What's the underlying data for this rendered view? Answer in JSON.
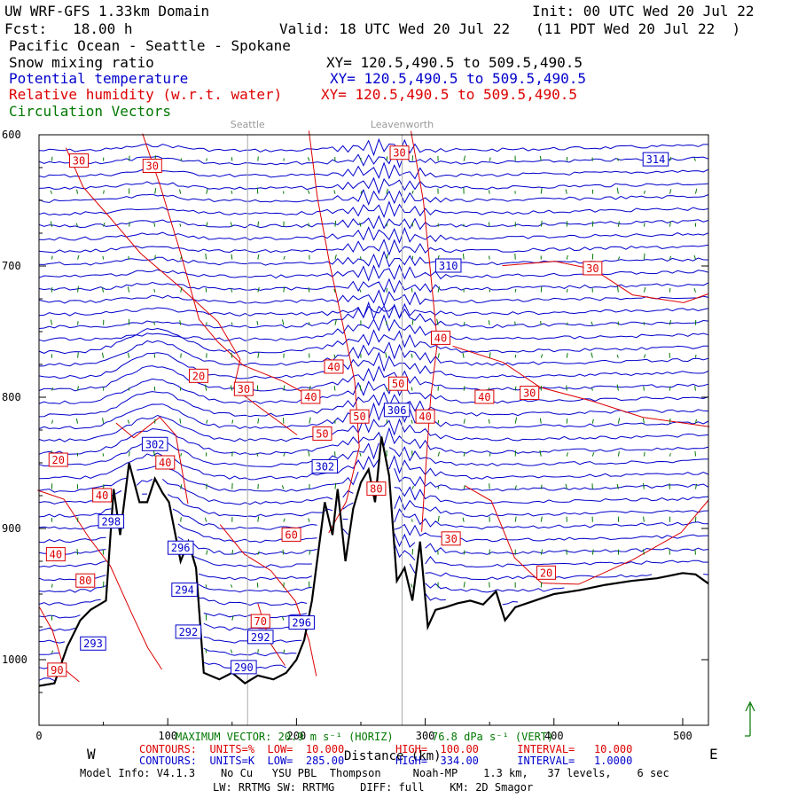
{
  "header": {
    "model_title": "UW WRF-GFS 1.33km Domain",
    "init": "Init: 00 UTC Wed 20 Jul 22",
    "fcst": "Fcst:   18.00 h",
    "valid": "Valid: 18 UTC Wed 20 Jul 22   (11 PDT Wed 20 Jul 22  )",
    "region": "Pacific Ocean - Seattle - Spokane",
    "field_snow": "Snow mixing ratio",
    "xy_snow": "XY= 120.5,490.5 to 509.5,490.5",
    "field_theta": "Potential temperature",
    "xy_theta": "XY= 120.5,490.5 to 509.5,490.5",
    "field_rh": "Relative humidity (w.r.t. water)",
    "xy_rh": "XY= 120.5,490.5 to 509.5,490.5",
    "field_vec": "Circulation Vectors"
  },
  "footer": {
    "west": "W",
    "east": "E",
    "xlabel": "Distance (km)",
    "maxvec": "MAXIMUM VECTOR: 20.9 m s⁻¹ (HORIZ)      76.8 dPa s⁻¹ (VERT)",
    "rh_contours": "CONTOURS:  UNITS=%  LOW=  10.000        HIGH=  100.00      INTERVAL=   10.000",
    "th_contours": "CONTOURS:  UNITS=K  LOW=  285.00        HIGH=  334.00      INTERVAL=   1.0000",
    "model_info": "Model Info: V4.1.3    No Cu   YSU PBL  Thompson     Noah-MP    1.3 km,   37 levels,    6 sec",
    "physics": "LW: RRTMG SW: RRTMG    DIFF: full    KM: 2D Smagor"
  },
  "chart_data": {
    "type": "line",
    "xlabel": "Distance (km)",
    "ylabel": "",
    "xlim": [
      0,
      520
    ],
    "ylim": [
      1050,
      600
    ],
    "xticks": [
      0,
      100,
      200,
      300,
      400,
      500
    ],
    "yticks": [
      600,
      700,
      800,
      900,
      1000
    ],
    "ytick_labels": [
      "600",
      "700",
      "800",
      "900",
      "1000"
    ],
    "location_markers": [
      {
        "name": "Seattle",
        "x": 162
      },
      {
        "name": "Leavenworth",
        "x": 282
      }
    ],
    "terrain_pressure": [
      {
        "x": 0,
        "p": 1020
      },
      {
        "x": 12,
        "p": 1018
      },
      {
        "x": 22,
        "p": 990
      },
      {
        "x": 32,
        "p": 970
      },
      {
        "x": 40,
        "p": 962
      },
      {
        "x": 52,
        "p": 955
      },
      {
        "x": 58,
        "p": 870
      },
      {
        "x": 63,
        "p": 905
      },
      {
        "x": 70,
        "p": 850
      },
      {
        "x": 78,
        "p": 880
      },
      {
        "x": 84,
        "p": 880
      },
      {
        "x": 90,
        "p": 862
      },
      {
        "x": 96,
        "p": 873
      },
      {
        "x": 101,
        "p": 880
      },
      {
        "x": 110,
        "p": 925
      },
      {
        "x": 116,
        "p": 910
      },
      {
        "x": 122,
        "p": 930
      },
      {
        "x": 128,
        "p": 1010
      },
      {
        "x": 140,
        "p": 1015
      },
      {
        "x": 150,
        "p": 1010
      },
      {
        "x": 160,
        "p": 1018
      },
      {
        "x": 170,
        "p": 1012
      },
      {
        "x": 182,
        "p": 1015
      },
      {
        "x": 192,
        "p": 1010
      },
      {
        "x": 200,
        "p": 1000
      },
      {
        "x": 206,
        "p": 985
      },
      {
        "x": 212,
        "p": 955
      },
      {
        "x": 218,
        "p": 910
      },
      {
        "x": 222,
        "p": 880
      },
      {
        "x": 228,
        "p": 905
      },
      {
        "x": 232,
        "p": 870
      },
      {
        "x": 238,
        "p": 925
      },
      {
        "x": 244,
        "p": 885
      },
      {
        "x": 250,
        "p": 865
      },
      {
        "x": 256,
        "p": 855
      },
      {
        "x": 261,
        "p": 880
      },
      {
        "x": 266,
        "p": 830
      },
      {
        "x": 272,
        "p": 860
      },
      {
        "x": 278,
        "p": 940
      },
      {
        "x": 284,
        "p": 930
      },
      {
        "x": 290,
        "p": 955
      },
      {
        "x": 296,
        "p": 910
      },
      {
        "x": 302,
        "p": 975
      },
      {
        "x": 308,
        "p": 962
      },
      {
        "x": 316,
        "p": 960
      },
      {
        "x": 325,
        "p": 957
      },
      {
        "x": 335,
        "p": 955
      },
      {
        "x": 345,
        "p": 958
      },
      {
        "x": 355,
        "p": 948
      },
      {
        "x": 362,
        "p": 970
      },
      {
        "x": 370,
        "p": 960
      },
      {
        "x": 385,
        "p": 955
      },
      {
        "x": 400,
        "p": 950
      },
      {
        "x": 420,
        "p": 947
      },
      {
        "x": 440,
        "p": 943
      },
      {
        "x": 460,
        "p": 940
      },
      {
        "x": 480,
        "p": 938
      },
      {
        "x": 500,
        "p": 934
      },
      {
        "x": 510,
        "p": 935
      },
      {
        "x": 520,
        "p": 942
      }
    ],
    "theta_labels": [
      {
        "value": "314",
        "x": 479,
        "p": 619
      },
      {
        "value": "310",
        "x": 318,
        "p": 700
      },
      {
        "value": "306",
        "x": 278,
        "p": 810
      },
      {
        "value": "302",
        "x": 90,
        "p": 836
      },
      {
        "value": "302",
        "x": 222,
        "p": 853
      },
      {
        "value": "298",
        "x": 56,
        "p": 895
      },
      {
        "value": "296",
        "x": 110,
        "p": 915
      },
      {
        "value": "294",
        "x": 113,
        "p": 947
      },
      {
        "value": "292",
        "x": 116,
        "p": 979
      },
      {
        "value": "292",
        "x": 172,
        "p": 983
      },
      {
        "value": "296",
        "x": 204,
        "p": 972
      },
      {
        "value": "293",
        "x": 42,
        "p": 988
      },
      {
        "value": "290",
        "x": 159,
        "p": 1006
      }
    ],
    "rh_labels": [
      {
        "value": "30",
        "x": 31,
        "p": 620
      },
      {
        "value": "30",
        "x": 88,
        "p": 624
      },
      {
        "value": "30",
        "x": 280,
        "p": 614
      },
      {
        "value": "30",
        "x": 430,
        "p": 702
      },
      {
        "value": "40",
        "x": 312,
        "p": 755
      },
      {
        "value": "40",
        "x": 229,
        "p": 777
      },
      {
        "value": "20",
        "x": 124,
        "p": 784
      },
      {
        "value": "30",
        "x": 159,
        "p": 794
      },
      {
        "value": "40",
        "x": 211,
        "p": 800
      },
      {
        "value": "50",
        "x": 279,
        "p": 790
      },
      {
        "value": "40",
        "x": 346,
        "p": 800
      },
      {
        "value": "30",
        "x": 381,
        "p": 797
      },
      {
        "value": "50",
        "x": 249,
        "p": 815
      },
      {
        "value": "40",
        "x": 300,
        "p": 815
      },
      {
        "value": "50",
        "x": 220,
        "p": 828
      },
      {
        "value": "20",
        "x": 15,
        "p": 848
      },
      {
        "value": "40",
        "x": 98,
        "p": 850
      },
      {
        "value": "40",
        "x": 49,
        "p": 875
      },
      {
        "value": "80",
        "x": 262,
        "p": 870
      },
      {
        "value": "60",
        "x": 196,
        "p": 905
      },
      {
        "value": "30",
        "x": 320,
        "p": 908
      },
      {
        "value": "40",
        "x": 13,
        "p": 920
      },
      {
        "value": "20",
        "x": 394,
        "p": 934
      },
      {
        "value": "80",
        "x": 36,
        "p": 940
      },
      {
        "value": "70",
        "x": 172,
        "p": 971
      },
      {
        "value": "90",
        "x": 14,
        "p": 1008
      }
    ],
    "max_vector_horiz": "20.9 m s⁻¹",
    "max_vector_vert": "76.8 dPa s⁻¹",
    "rh_contour_low": 10,
    "rh_contour_high": 100,
    "rh_contour_interval": 10,
    "theta_contour_low": 285,
    "theta_contour_high": 334,
    "theta_contour_interval": 1,
    "colors": {
      "theta": "#0000cc",
      "rh": "#dd0000",
      "vectors": "#007700",
      "terrain": "#000000"
    }
  }
}
